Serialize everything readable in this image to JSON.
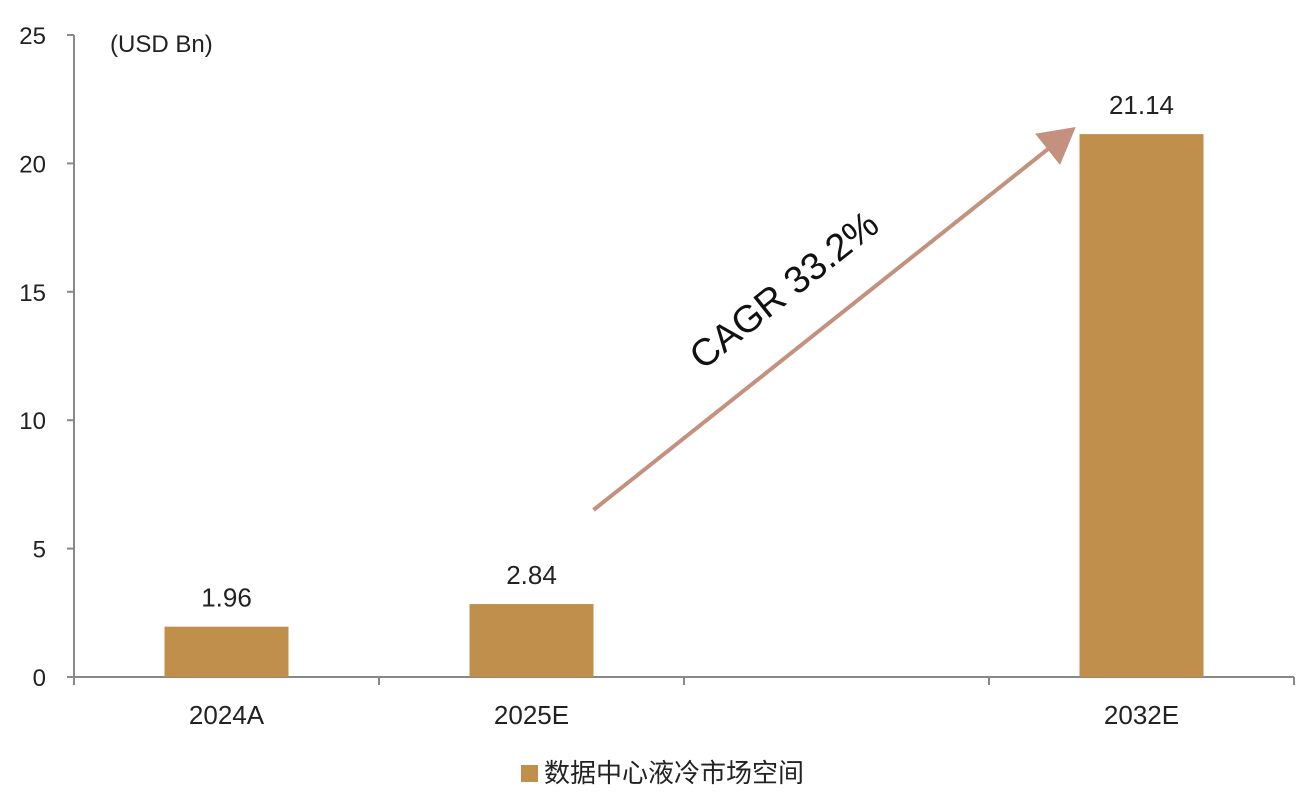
{
  "chart_data": {
    "type": "bar",
    "unit_label": "(USD Bn)",
    "categories": [
      "2024A",
      "2025E",
      "",
      "2032E"
    ],
    "series": [
      {
        "name": "数据中心液冷市场空间",
        "values": [
          1.96,
          2.84,
          null,
          21.14
        ],
        "data_labels": [
          "1.96",
          "2.84",
          "",
          "21.14"
        ]
      }
    ],
    "ylim": [
      0,
      25
    ],
    "yticks": [
      0,
      5,
      10,
      15,
      20,
      25
    ],
    "grid": false,
    "legend_position": "bottom-center",
    "annotation": {
      "text": "CAGR 33.2%",
      "type": "arrow",
      "from_category_index": 1,
      "to_category_index": 3
    }
  },
  "colors": {
    "bar": "#BF8F4B",
    "axis": "#888888",
    "arrow": "#C4917F",
    "text": "#222222"
  }
}
